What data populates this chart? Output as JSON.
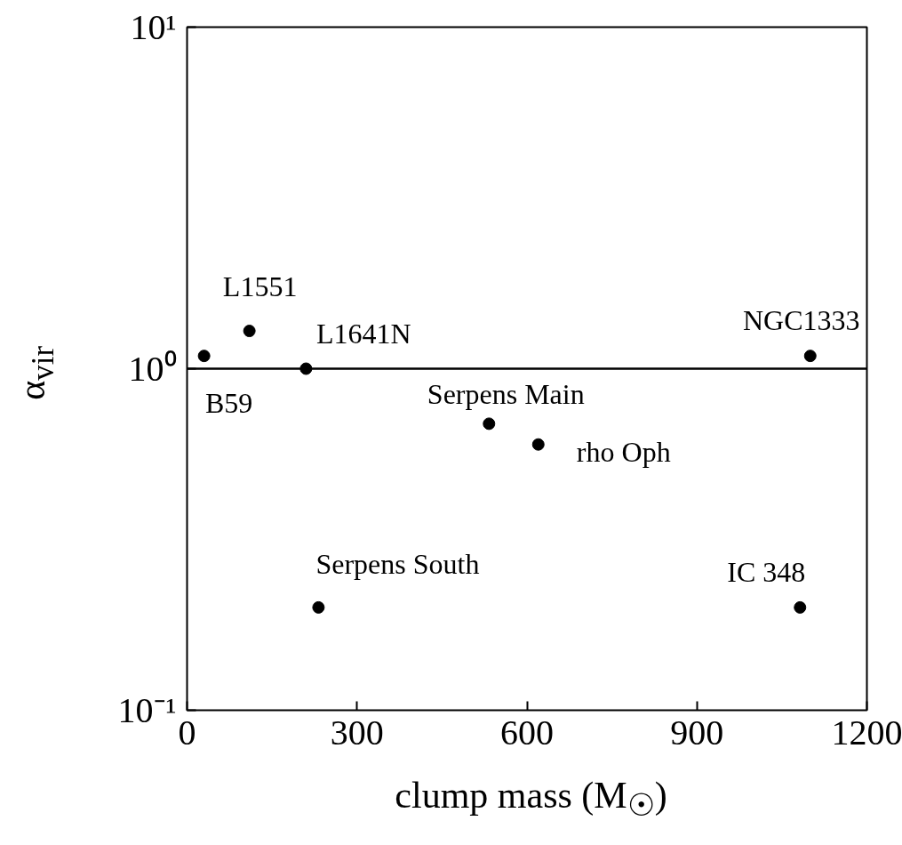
{
  "chart_data": {
    "type": "scatter",
    "xlabel": "clump mass (M$_{☉}$)",
    "ylabel": "α$_{vir}$",
    "x": [
      30,
      110,
      210,
      533,
      620,
      232,
      1082,
      1100
    ],
    "series": [
      {
        "color": "#000000",
        "values": [
          1.09,
          1.29,
          1.0,
          0.69,
          0.6,
          0.2,
          0.2,
          1.09
        ]
      }
    ],
    "marker": "circle",
    "log": "y",
    "xlim": [
      0,
      1200
    ],
    "xticks": [
      0,
      300,
      600,
      900,
      1200
    ],
    "ylim": [
      0.1,
      10
    ],
    "yticks": [
      {
        "value": 0.1,
        "label": "10⁻¹"
      },
      {
        "value": 1,
        "label": "10⁰"
      },
      {
        "value": 10,
        "label": "10¹"
      }
    ],
    "grid": false,
    "ref_lines": [
      {
        "axis": "y",
        "value": 1,
        "color": "#000000",
        "line_style": "solid"
      }
    ],
    "annotations": [
      {
        "text": "B59",
        "x": 30,
        "y": 1.09
      },
      {
        "text": "L1551",
        "x": 110,
        "y": 1.29
      },
      {
        "text": "L1641N",
        "x": 210,
        "y": 1.0
      },
      {
        "text": "Serpens Main",
        "x": 533,
        "y": 0.69
      },
      {
        "text": "rho Oph",
        "x": 620,
        "y": 0.6
      },
      {
        "text": "Serpens South",
        "x": 232,
        "y": 0.2
      },
      {
        "text": "IC 348",
        "x": 1082,
        "y": 0.2
      },
      {
        "text": "NGC1333",
        "x": 1100,
        "y": 1.09
      }
    ]
  }
}
